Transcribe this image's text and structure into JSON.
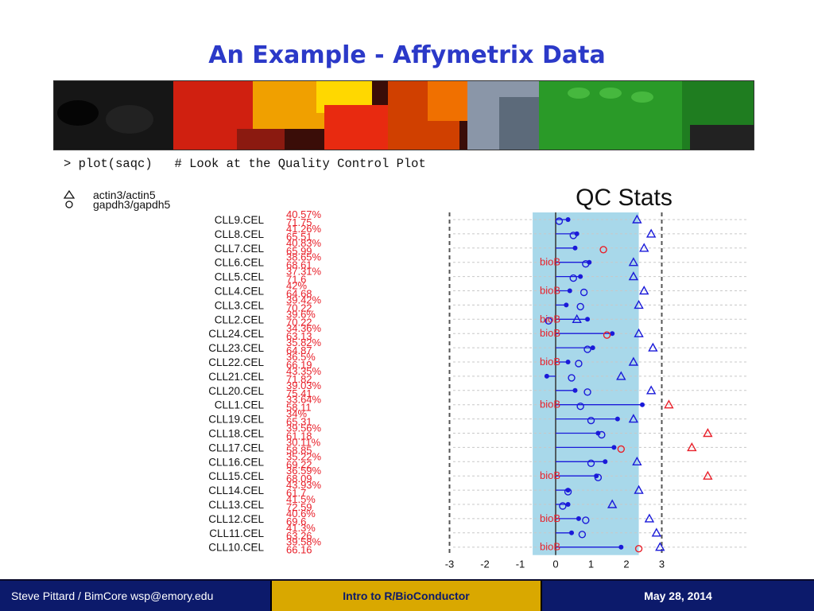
{
  "slide": {
    "title": "An Example - Affymetrix Data"
  },
  "code": {
    "line": "> plot(saqc)   # Look at the Quality Control Plot"
  },
  "footer": {
    "left": "Steve Pittard / BimCore wsp@emory.edu",
    "center": "Intro to R/BioConductor",
    "right": "May 28, 2014"
  },
  "colors": {
    "title": "#2b39c8",
    "band": "#a8d8ea",
    "blue": "#1a1ad9",
    "red": "#e8202a",
    "footer_bg": "#0c1a6b",
    "footer_mid": "#d9a800"
  },
  "chart_data": {
    "type": "scatter",
    "title": "QC Stats",
    "legend": {
      "placement": "top-left",
      "entries": [
        {
          "name": "actin3/actin5",
          "marker": "triangle"
        },
        {
          "name": "gapdh3/gapdh5",
          "marker": "circle"
        }
      ]
    },
    "x_ticks": [
      "-3",
      "-2",
      "-1",
      "0",
      "1",
      "2",
      "3"
    ],
    "xlim": [
      -3.3,
      3.3
    ],
    "dashed_lines_x": [
      -3,
      3
    ],
    "shaded_band": [
      -0.65,
      2.35
    ],
    "flag_label": "bioB",
    "samples": [
      {
        "name": "CLL9.CEL",
        "pct1": "40.57%",
        "pct2": "71.75",
        "scale": 0.35,
        "gapdh": 0.1,
        "actin": 2.3,
        "actin_flag": false,
        "gapdh_flag": false,
        "bioB": false
      },
      {
        "name": "CLL8.CEL",
        "pct1": "41.26%",
        "pct2": "65.51",
        "scale": 0.6,
        "gapdh": 0.5,
        "actin": 2.7,
        "actin_flag": false,
        "gapdh_flag": false,
        "bioB": false
      },
      {
        "name": "CLL7.CEL",
        "pct1": "40.83%",
        "pct2": "65.99",
        "scale": 0.55,
        "gapdh": 1.35,
        "actin": 2.5,
        "actin_flag": false,
        "gapdh_flag": true,
        "bioB": false
      },
      {
        "name": "CLL6.CEL",
        "pct1": "38.65%",
        "pct2": "68.61",
        "scale": 0.95,
        "gapdh": 0.85,
        "actin": 2.2,
        "actin_flag": false,
        "gapdh_flag": false,
        "bioB": true
      },
      {
        "name": "CLL5.CEL",
        "pct1": "37.31%",
        "pct2": "71.6",
        "scale": 0.7,
        "gapdh": 0.5,
        "actin": 2.2,
        "actin_flag": false,
        "gapdh_flag": false,
        "bioB": false
      },
      {
        "name": "CLL4.CEL",
        "pct1": "42%",
        "pct2": "64.68",
        "scale": 0.4,
        "gapdh": 0.8,
        "actin": 2.5,
        "actin_flag": false,
        "gapdh_flag": false,
        "bioB": true
      },
      {
        "name": "CLL3.CEL",
        "pct1": "39.42%",
        "pct2": "70.22",
        "scale": 0.3,
        "gapdh": 0.7,
        "actin": 2.35,
        "actin_flag": false,
        "gapdh_flag": false,
        "bioB": false
      },
      {
        "name": "CLL2.CEL",
        "pct1": "39.6%",
        "pct2": "70.22",
        "scale": 0.9,
        "gapdh": -0.2,
        "actin": 0.6,
        "actin_flag": false,
        "gapdh_flag": false,
        "bioB": true
      },
      {
        "name": "CLL24.CEL",
        "pct1": "34.36%",
        "pct2": "63.13",
        "scale": 1.6,
        "gapdh": 1.45,
        "actin": 2.35,
        "actin_flag": false,
        "gapdh_flag": true,
        "bioB": true
      },
      {
        "name": "CLL23.CEL",
        "pct1": "35.82%",
        "pct2": "64.87",
        "scale": 1.05,
        "gapdh": 0.9,
        "actin": 2.75,
        "actin_flag": false,
        "gapdh_flag": false,
        "bioB": false
      },
      {
        "name": "CLL22.CEL",
        "pct1": "36.5%",
        "pct2": "66.19",
        "scale": 0.35,
        "gapdh": 0.65,
        "actin": 2.2,
        "actin_flag": false,
        "gapdh_flag": false,
        "bioB": true
      },
      {
        "name": "CLL21.CEL",
        "pct1": "43.35%",
        "pct2": "71.82",
        "scale": -0.25,
        "gapdh": 0.45,
        "actin": 1.85,
        "actin_flag": false,
        "gapdh_flag": false,
        "bioB": false
      },
      {
        "name": "CLL20.CEL",
        "pct1": "39.03%",
        "pct2": "75.41",
        "scale": 0.55,
        "gapdh": 0.9,
        "actin": 2.7,
        "actin_flag": false,
        "gapdh_flag": false,
        "bioB": false
      },
      {
        "name": "CLL1.CEL",
        "pct1": "33.64%",
        "pct2": "58.11",
        "scale": 2.45,
        "gapdh": 0.7,
        "actin": 3.2,
        "actin_flag": true,
        "gapdh_flag": false,
        "bioB": true
      },
      {
        "name": "CLL19.CEL",
        "pct1": "34%",
        "pct2": "65.31",
        "scale": 1.75,
        "gapdh": 1.0,
        "actin": 2.2,
        "actin_flag": false,
        "gapdh_flag": false,
        "bioB": false
      },
      {
        "name": "CLL18.CEL",
        "pct1": "39.56%",
        "pct2": "61.18",
        "scale": 1.2,
        "gapdh": 1.3,
        "actin": 4.3,
        "actin_flag": true,
        "gapdh_flag": false,
        "bioB": false
      },
      {
        "name": "CLL17.CEL",
        "pct1": "30.11%",
        "pct2": "58.85",
        "scale": 1.65,
        "gapdh": 1.85,
        "actin": 3.85,
        "actin_flag": true,
        "gapdh_flag": true,
        "bioB": false
      },
      {
        "name": "CLL16.CEL",
        "pct1": "35.22%",
        "pct2": "69.22",
        "scale": 1.4,
        "gapdh": 1.0,
        "actin": 2.3,
        "actin_flag": false,
        "gapdh_flag": false,
        "bioB": false
      },
      {
        "name": "CLL15.CEL",
        "pct1": "36.59%",
        "pct2": "68.09",
        "scale": 1.15,
        "gapdh": 1.2,
        "actin": 4.3,
        "actin_flag": true,
        "gapdh_flag": false,
        "bioB": true
      },
      {
        "name": "CLL14.CEL",
        "pct1": "43.93%",
        "pct2": "61.7",
        "scale": 0.35,
        "gapdh": 0.35,
        "actin": 2.35,
        "actin_flag": false,
        "gapdh_flag": false,
        "bioB": false
      },
      {
        "name": "CLL13.CEL",
        "pct1": "41.5%",
        "pct2": "72.59",
        "scale": 0.35,
        "gapdh": 0.2,
        "actin": 1.6,
        "actin_flag": false,
        "gapdh_flag": false,
        "bioB": false
      },
      {
        "name": "CLL12.CEL",
        "pct1": "40.6%",
        "pct2": "69.6",
        "scale": 0.65,
        "gapdh": 0.85,
        "actin": 2.65,
        "actin_flag": false,
        "gapdh_flag": false,
        "bioB": true
      },
      {
        "name": "CLL11.CEL",
        "pct1": "41.3%",
        "pct2": "63.26",
        "scale": 0.45,
        "gapdh": 0.75,
        "actin": 2.85,
        "actin_flag": false,
        "gapdh_flag": false,
        "bioB": false
      },
      {
        "name": "CLL10.CEL",
        "pct1": "39.58%",
        "pct2": "66.16",
        "scale": 1.85,
        "gapdh": 2.35,
        "actin": 2.95,
        "actin_flag": false,
        "gapdh_flag": true,
        "bioB": true
      }
    ]
  }
}
